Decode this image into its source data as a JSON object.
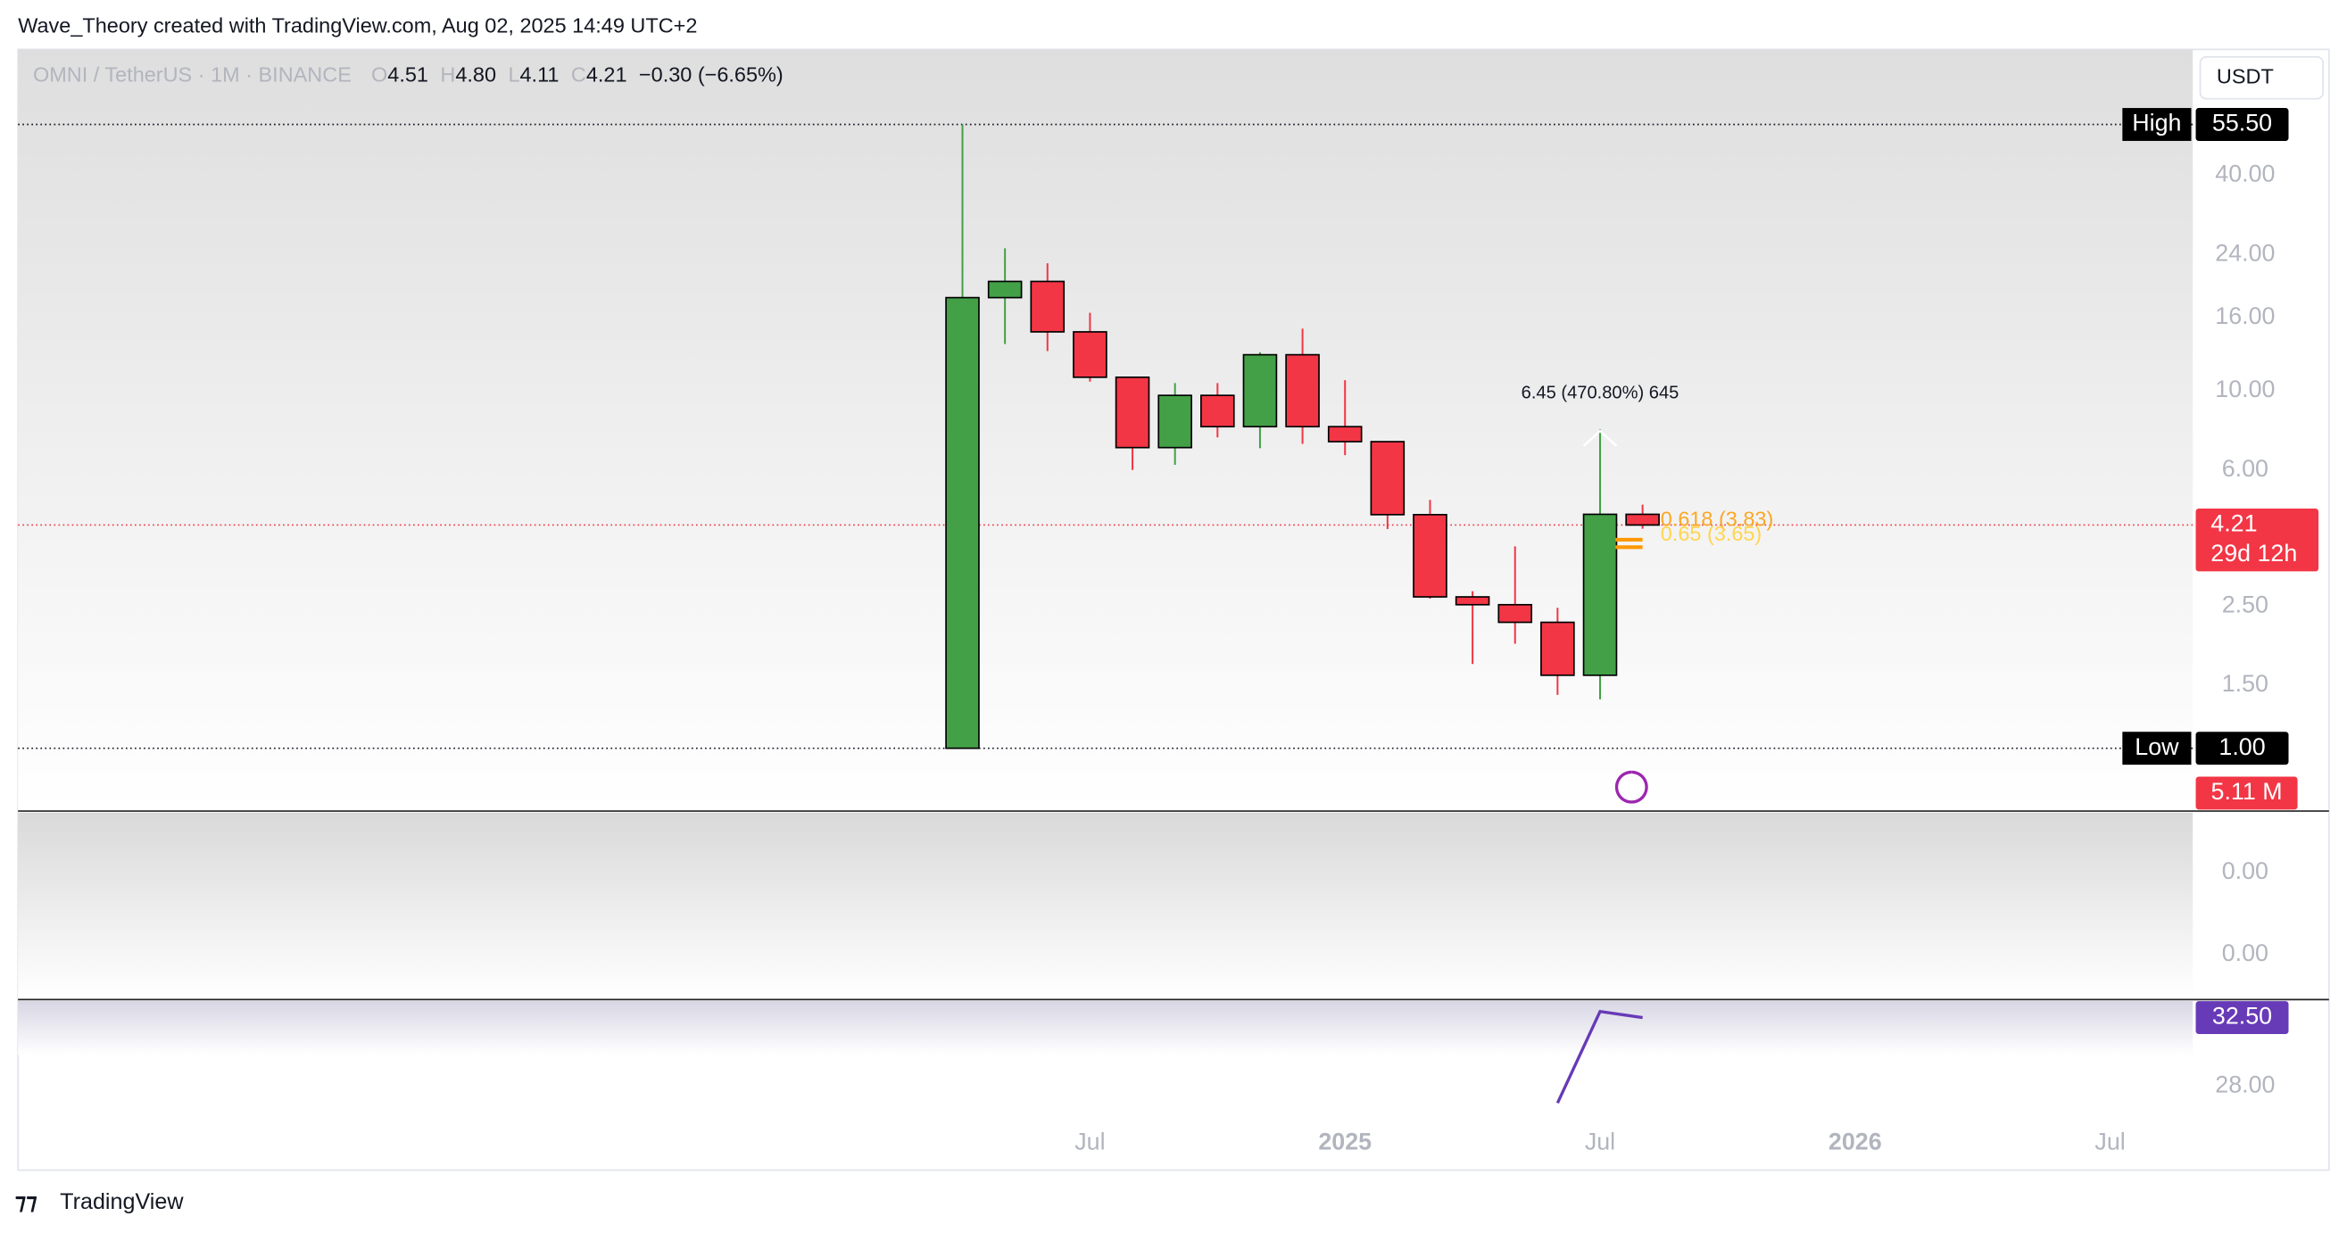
{
  "header": {
    "credit": "Wave_Theory created with TradingView.com, Aug 02, 2025 14:49 UTC+2",
    "brand": "TradingView"
  },
  "chart_data": {
    "type": "candlestick",
    "symbol": "OMNI / TetherUS · 1M · BINANCE",
    "ohlc_legend": [
      {
        "key": "O",
        "text": "4.51"
      },
      {
        "key": "H",
        "text": "4.80"
      },
      {
        "key": "L",
        "text": "4.11"
      },
      {
        "key": "C",
        "text": "4.21"
      }
    ],
    "change": "−0.30 (−6.65%)",
    "currency": "USDT",
    "log_scale": true,
    "ylim": [
      0.674,
      90
    ],
    "yticks": [
      {
        "value": 40,
        "label": "40.00"
      },
      {
        "value": 24,
        "label": "24.00"
      },
      {
        "value": 16,
        "label": "16.00"
      },
      {
        "value": 10,
        "label": "10.00"
      },
      {
        "value": 6,
        "label": "6.00"
      },
      {
        "value": 2.5,
        "label": "2.50"
      },
      {
        "value": 1.5,
        "label": "1.50"
      }
    ],
    "x": [
      "2024-04",
      "2024-05",
      "2024-06",
      "2024-07",
      "2024-08",
      "2024-09",
      "2024-10",
      "2024-11",
      "2024-12",
      "2025-01",
      "2025-02",
      "2025-03",
      "2025-04",
      "2025-05",
      "2025-06",
      "2025-07",
      "2025-08"
    ],
    "xticks": [
      {
        "value": "2024-07",
        "label": "Jul"
      },
      {
        "value": "2025-01",
        "label": "2025"
      },
      {
        "value": "2025-07",
        "label": "Jul"
      },
      {
        "value": "2026-01",
        "label": "2026"
      },
      {
        "value": "2026-07",
        "label": "Jul"
      }
    ],
    "open": [
      1.0,
      18.2,
      20.2,
      14.6,
      10.9,
      6.93,
      9.7,
      7.93,
      12.6,
      7.93,
      7.2,
      4.5,
      2.65,
      2.52,
      2.25,
      1.6,
      4.51
    ],
    "high": [
      55.5,
      25.0,
      22.7,
      16.5,
      10.9,
      10.5,
      10.5,
      12.8,
      14.9,
      10.7,
      7.2,
      4.95,
      2.75,
      3.67,
      2.47,
      7.8,
      4.8
    ],
    "low": [
      1.0,
      13.5,
      12.9,
      10.6,
      6.0,
      6.2,
      7.4,
      6.9,
      7.1,
      6.6,
      4.1,
      2.62,
      1.72,
      1.96,
      1.41,
      1.37,
      4.11
    ],
    "close": [
      18.2,
      20.2,
      14.6,
      10.9,
      6.93,
      9.7,
      7.93,
      12.6,
      7.93,
      7.2,
      4.5,
      2.65,
      2.52,
      2.25,
      1.6,
      4.51,
      4.21
    ],
    "up_color": "#43a047",
    "down_color": "#f23645",
    "high_marker": {
      "name": "High",
      "value": 55.5,
      "label": "55.50"
    },
    "low_marker": {
      "name": "Low",
      "value": 1.0,
      "label": "1.00"
    },
    "last_price": {
      "value": 4.21,
      "label": "4.21",
      "countdown": "29d 12h"
    },
    "measure_label": "6.45 (470.80%) 645",
    "fib_levels": [
      {
        "value": 3.83,
        "label": "0.618 (3.83)"
      },
      {
        "value": 3.65,
        "label": "0.65 (3.65)"
      }
    ],
    "volume_label": "5.11 M",
    "indicator_labels": [
      "0.00",
      "0.00"
    ],
    "rsi": {
      "x": [
        "2025-06",
        "2025-07",
        "2025-08"
      ],
      "values": [
        26.9,
        32.9,
        32.5
      ],
      "color": "#673ab7",
      "ylim": [
        22.5,
        33.68
      ],
      "yticks": [
        {
          "value": 28,
          "label": "28.00"
        }
      ],
      "last": {
        "value": 32.5,
        "label": "32.50"
      }
    }
  }
}
